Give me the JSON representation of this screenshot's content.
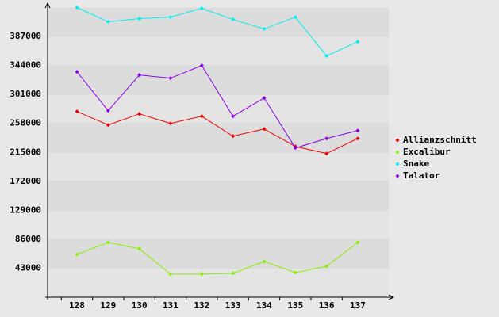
{
  "chart_data": {
    "type": "line",
    "categories": [
      "128",
      "129",
      "130",
      "131",
      "132",
      "133",
      "134",
      "135",
      "136",
      "137"
    ],
    "series": [
      {
        "name": "Allianzschnitt",
        "color": "#ee0000",
        "values": [
          275700,
          255600,
          272100,
          258000,
          268600,
          239100,
          249700,
          223800,
          213200,
          235600
        ]
      },
      {
        "name": "Excalibur",
        "color": "#88ee00",
        "values": [
          63600,
          81300,
          71900,
          34200,
          34200,
          35300,
          53000,
          36500,
          45900,
          81300
        ]
      },
      {
        "name": "Snake",
        "color": "#00eeee",
        "values": [
          430000,
          408800,
          413500,
          415800,
          428800,
          412300,
          398200,
          415800,
          358100,
          379300
        ]
      },
      {
        "name": "Talator",
        "color": "#8800ee",
        "values": [
          334600,
          276800,
          329800,
          325100,
          344000,
          268600,
          295700,
          221500,
          235600,
          247400
        ]
      }
    ],
    "ylim": [
      0,
      430000
    ],
    "yticks": [
      43000,
      86000,
      129000,
      172000,
      215000,
      258000,
      301000,
      344000,
      387000
    ],
    "grid": true,
    "legend": "right"
  }
}
